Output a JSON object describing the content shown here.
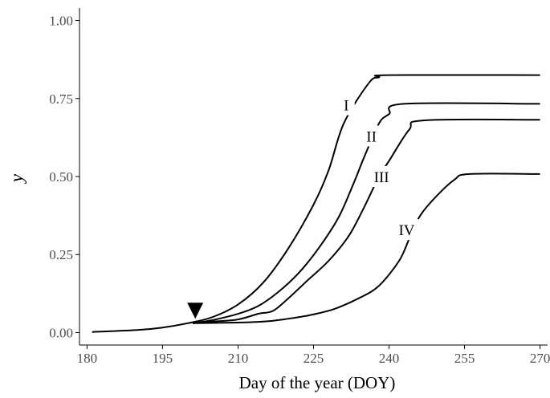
{
  "chart_data": {
    "type": "line",
    "title": "",
    "xlabel": "Day of the year (DOY)",
    "ylabel": "y",
    "xlim": [
      178.5,
      271.5
    ],
    "ylim": [
      -0.04,
      1.04
    ],
    "x_ticks": [
      180,
      195,
      210,
      225,
      240,
      255,
      270
    ],
    "x_tick_labels": [
      "180",
      "195",
      "210",
      "225",
      "240",
      "255",
      "270"
    ],
    "y_ticks": [
      0.0,
      0.25,
      0.5,
      0.75,
      1.0
    ],
    "y_tick_labels": [
      "0.00",
      "0.25",
      "0.50",
      "0.75",
      "1.00"
    ],
    "grid": false,
    "legend": "none",
    "series": [
      {
        "name": "I",
        "points": [
          [
            181,
            0.002
          ],
          [
            190,
            0.008
          ],
          [
            195,
            0.016
          ],
          [
            200,
            0.03
          ],
          [
            205,
            0.05
          ],
          [
            210,
            0.09
          ],
          [
            215,
            0.16
          ],
          [
            220,
            0.27
          ],
          [
            225,
            0.41
          ],
          [
            228,
            0.52
          ],
          [
            231,
            0.67
          ],
          [
            236,
            0.8
          ],
          [
            238,
            0.818
          ],
          [
            240,
            0.825
          ],
          [
            270,
            0.825
          ]
        ]
      },
      {
        "name": "II",
        "points": [
          [
            201,
            0.03
          ],
          [
            205,
            0.04
          ],
          [
            210,
            0.06
          ],
          [
            214,
            0.085
          ],
          [
            218,
            0.13
          ],
          [
            222,
            0.19
          ],
          [
            226,
            0.27
          ],
          [
            230,
            0.37
          ],
          [
            233,
            0.48
          ],
          [
            235,
            0.56
          ],
          [
            238,
            0.67
          ],
          [
            240,
            0.7
          ],
          [
            243,
            0.733
          ],
          [
            270,
            0.733
          ]
        ]
      },
      {
        "name": "III",
        "points": [
          [
            201,
            0.03
          ],
          [
            205,
            0.035
          ],
          [
            210,
            0.042
          ],
          [
            214,
            0.06
          ],
          [
            217,
            0.07
          ],
          [
            220,
            0.11
          ],
          [
            224,
            0.17
          ],
          [
            228,
            0.23
          ],
          [
            232,
            0.31
          ],
          [
            235,
            0.4
          ],
          [
            238,
            0.5
          ],
          [
            240,
            0.55
          ],
          [
            244,
            0.65
          ],
          [
            247,
            0.68
          ],
          [
            270,
            0.682
          ]
        ]
      },
      {
        "name": "IV",
        "points": [
          [
            201,
            0.03
          ],
          [
            210,
            0.032
          ],
          [
            215,
            0.035
          ],
          [
            219,
            0.042
          ],
          [
            224,
            0.055
          ],
          [
            229,
            0.075
          ],
          [
            234,
            0.11
          ],
          [
            238,
            0.15
          ],
          [
            242,
            0.23
          ],
          [
            244,
            0.3
          ],
          [
            246,
            0.37
          ],
          [
            249,
            0.43
          ],
          [
            253,
            0.49
          ],
          [
            256,
            0.508
          ],
          [
            270,
            0.508
          ]
        ]
      }
    ],
    "curve_labels": [
      {
        "text": "I",
        "x": 231.5,
        "y": 0.73
      },
      {
        "text": "II",
        "x": 236.5,
        "y": 0.63
      },
      {
        "text": "III",
        "x": 238.5,
        "y": 0.5
      },
      {
        "text": "IV",
        "x": 243.5,
        "y": 0.33
      }
    ],
    "annotations": [
      {
        "type": "marker",
        "shape": "down-triangle",
        "x": 201.5,
        "y": 0.07
      }
    ]
  }
}
